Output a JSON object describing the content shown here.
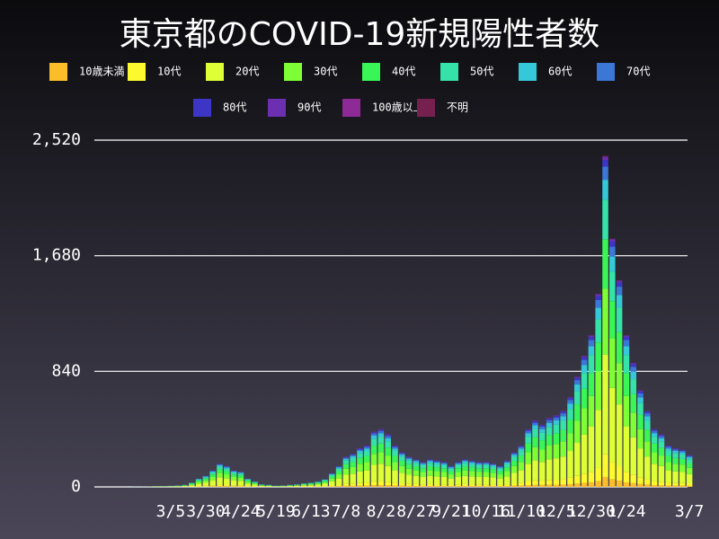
{
  "chart_data": {
    "type": "stacked-bar",
    "title": "東京都のCOVID-19新規陽性者数",
    "categories": [
      null,
      null,
      null,
      null,
      null,
      "3/5",
      null,
      null,
      null,
      null,
      "3/30",
      null,
      null,
      null,
      null,
      "4/24",
      null,
      null,
      null,
      null,
      "5/19",
      null,
      null,
      null,
      null,
      "6/13",
      null,
      null,
      null,
      null,
      "7/8",
      null,
      null,
      null,
      null,
      "8/2",
      null,
      null,
      null,
      null,
      "8/27",
      null,
      null,
      null,
      null,
      "9/21",
      null,
      null,
      null,
      null,
      "10/16",
      null,
      null,
      null,
      null,
      "11/10",
      null,
      null,
      null,
      null,
      "12/5",
      null,
      null,
      null,
      null,
      "12/30",
      null,
      null,
      null,
      null,
      "1/24",
      null,
      null,
      null,
      null,
      null,
      null,
      null,
      null,
      "3/7"
    ],
    "ylim": [
      0,
      2520
    ],
    "yticks": [
      0,
      840,
      {
        "value": 1680,
        "label": "1,680"
      },
      {
        "value": 2520,
        "label": "2,520"
      }
    ],
    "grid": true,
    "legend": "top",
    "series": [
      {
        "name": "10歳未満",
        "color": "#fbbd2a",
        "values": [
          0,
          0,
          0,
          0,
          0,
          0,
          0,
          0,
          1,
          2,
          2,
          4,
          5,
          5,
          4,
          3,
          2,
          1,
          1,
          0,
          0,
          0,
          0,
          1,
          1,
          1,
          1,
          2,
          3,
          5,
          7,
          7,
          8,
          9,
          12,
          13,
          11,
          9,
          8,
          7,
          6,
          5,
          6,
          6,
          5,
          5,
          5,
          6,
          6,
          5,
          5,
          5,
          5,
          6,
          8,
          9,
          13,
          14,
          14,
          15,
          16,
          17,
          20,
          24,
          29,
          33,
          42,
          72,
          54,
          45,
          33,
          27,
          21,
          17,
          13,
          11,
          9,
          8,
          8,
          7
        ]
      },
      {
        "name": "10代",
        "color": "#fcf92e",
        "values": [
          0,
          0,
          0,
          0,
          0,
          1,
          1,
          1,
          2,
          4,
          6,
          8,
          12,
          11,
          8,
          8,
          4,
          3,
          1,
          1,
          1,
          1,
          1,
          1,
          2,
          2,
          3,
          4,
          7,
          11,
          15,
          17,
          20,
          21,
          28,
          29,
          27,
          21,
          18,
          15,
          14,
          13,
          14,
          13,
          13,
          11,
          13,
          14,
          13,
          13,
          13,
          12,
          11,
          13,
          18,
          21,
          29,
          34,
          32,
          35,
          36,
          39,
          46,
          56,
          67,
          77,
          98,
          168,
          126,
          105,
          77,
          63,
          49,
          39,
          29,
          27,
          21,
          20,
          19,
          16
        ]
      },
      {
        "name": "20代",
        "color": "#defe35",
        "values": [
          0,
          0,
          1,
          2,
          2,
          2,
          3,
          5,
          9,
          18,
          24,
          36,
          51,
          45,
          36,
          33,
          18,
          12,
          6,
          5,
          2,
          3,
          5,
          6,
          8,
          9,
          12,
          17,
          30,
          45,
          66,
          72,
          84,
          90,
          120,
          126,
          114,
          90,
          75,
          66,
          60,
          54,
          60,
          57,
          54,
          45,
          54,
          60,
          57,
          54,
          54,
          51,
          45,
          57,
          75,
          90,
          126,
          144,
          135,
          150,
          156,
          165,
          195,
          240,
          285,
          330,
          420,
          720,
          540,
          450,
          330,
          270,
          210,
          165,
          126,
          114,
          90,
          84,
          81,
          69
        ]
      },
      {
        "name": "30代",
        "color": "#7efe35",
        "values": [
          0,
          0,
          0,
          1,
          1,
          2,
          2,
          3,
          6,
          12,
          16,
          24,
          34,
          30,
          24,
          22,
          12,
          8,
          4,
          3,
          2,
          2,
          3,
          4,
          5,
          6,
          8,
          11,
          20,
          30,
          44,
          48,
          56,
          60,
          80,
          84,
          76,
          60,
          50,
          44,
          40,
          36,
          40,
          38,
          36,
          30,
          36,
          40,
          38,
          36,
          36,
          34,
          30,
          38,
          50,
          60,
          84,
          96,
          90,
          100,
          104,
          110,
          130,
          160,
          190,
          220,
          280,
          480,
          360,
          300,
          220,
          180,
          140,
          110,
          84,
          76,
          60,
          56,
          54,
          46
        ]
      },
      {
        "name": "40代",
        "color": "#39f556",
        "values": [
          0,
          0,
          0,
          1,
          1,
          1,
          2,
          2,
          5,
          9,
          12,
          18,
          26,
          23,
          18,
          17,
          9,
          6,
          3,
          2,
          1,
          2,
          2,
          3,
          4,
          5,
          6,
          8,
          15,
          23,
          33,
          36,
          42,
          45,
          60,
          63,
          57,
          45,
          38,
          33,
          30,
          27,
          30,
          29,
          27,
          23,
          27,
          30,
          29,
          27,
          27,
          26,
          23,
          29,
          38,
          45,
          63,
          72,
          68,
          75,
          78,
          83,
          98,
          120,
          143,
          165,
          210,
          360,
          270,
          225,
          165,
          135,
          105,
          83,
          63,
          57,
          45,
          42,
          41,
          35
        ]
      },
      {
        "name": "50代",
        "color": "#35e2a8",
        "values": [
          0,
          0,
          0,
          1,
          1,
          1,
          1,
          2,
          4,
          7,
          10,
          14,
          20,
          18,
          14,
          13,
          7,
          5,
          2,
          2,
          1,
          1,
          2,
          2,
          3,
          4,
          5,
          7,
          12,
          18,
          26,
          29,
          34,
          36,
          48,
          50,
          46,
          36,
          30,
          26,
          24,
          22,
          24,
          23,
          22,
          18,
          22,
          24,
          23,
          22,
          22,
          20,
          18,
          23,
          30,
          36,
          50,
          58,
          54,
          60,
          62,
          66,
          78,
          96,
          114,
          132,
          168,
          288,
          216,
          180,
          132,
          108,
          84,
          66,
          50,
          46,
          36,
          34,
          32,
          28
        ]
      },
      {
        "name": "60代",
        "color": "#35c8d8",
        "values": [
          1,
          0,
          0,
          0,
          0,
          0,
          1,
          1,
          2,
          4,
          5,
          7,
          10,
          9,
          7,
          7,
          4,
          2,
          1,
          1,
          1,
          1,
          1,
          1,
          1,
          2,
          2,
          3,
          6,
          9,
          13,
          14,
          17,
          18,
          24,
          25,
          23,
          18,
          15,
          13,
          12,
          11,
          12,
          11,
          11,
          9,
          11,
          12,
          11,
          11,
          11,
          10,
          9,
          11,
          15,
          18,
          25,
          29,
          27,
          30,
          31,
          33,
          39,
          48,
          57,
          66,
          84,
          144,
          108,
          90,
          66,
          54,
          42,
          33,
          25,
          23,
          18,
          17,
          16,
          14
        ]
      },
      {
        "name": "70代",
        "color": "#3b77d6",
        "values": [
          0,
          1,
          1,
          0,
          0,
          1,
          0,
          1,
          1,
          2,
          3,
          5,
          7,
          6,
          5,
          4,
          2,
          2,
          1,
          1,
          0,
          0,
          1,
          1,
          1,
          1,
          2,
          2,
          4,
          6,
          9,
          10,
          11,
          12,
          16,
          17,
          15,
          12,
          10,
          9,
          8,
          7,
          8,
          8,
          7,
          6,
          7,
          8,
          8,
          7,
          7,
          7,
          6,
          8,
          10,
          12,
          17,
          19,
          18,
          20,
          21,
          22,
          26,
          32,
          38,
          44,
          56,
          96,
          72,
          60,
          44,
          36,
          28,
          22,
          17,
          15,
          12,
          11,
          11,
          9
        ]
      },
      {
        "name": "80代",
        "color": "#3c35c6",
        "values": [
          0,
          0,
          0,
          0,
          0,
          0,
          0,
          0,
          0,
          1,
          2,
          2,
          3,
          3,
          3,
          2,
          1,
          1,
          1,
          0,
          0,
          0,
          0,
          1,
          0,
          0,
          1,
          1,
          2,
          3,
          4,
          5,
          6,
          6,
          8,
          8,
          8,
          6,
          5,
          4,
          4,
          4,
          4,
          4,
          4,
          3,
          4,
          4,
          4,
          4,
          4,
          3,
          3,
          4,
          5,
          6,
          8,
          10,
          9,
          10,
          10,
          11,
          13,
          16,
          19,
          22,
          28,
          48,
          36,
          30,
          22,
          18,
          14,
          11,
          8,
          8,
          6,
          6,
          5,
          5
        ]
      },
      {
        "name": "90代",
        "color": "#6b2fb0",
        "values": [
          0,
          0,
          0,
          0,
          0,
          0,
          0,
          0,
          0,
          0,
          0,
          1,
          1,
          1,
          1,
          1,
          0,
          0,
          0,
          0,
          0,
          0,
          0,
          0,
          0,
          0,
          0,
          0,
          1,
          1,
          2,
          2,
          3,
          3,
          4,
          4,
          4,
          3,
          2,
          2,
          2,
          2,
          2,
          2,
          2,
          1,
          2,
          2,
          2,
          2,
          2,
          2,
          1,
          2,
          2,
          3,
          4,
          5,
          4,
          5,
          5,
          6,
          6,
          8,
          9,
          11,
          14,
          24,
          18,
          15,
          11,
          9,
          7,
          5,
          4,
          4,
          3,
          3,
          3,
          2
        ]
      },
      {
        "name": "100歳以上",
        "color": "#8e2a96",
        "values": [
          0,
          0,
          0,
          0,
          0,
          0,
          0,
          0,
          0,
          0,
          0,
          0,
          0,
          0,
          0,
          0,
          0,
          0,
          0,
          0,
          0,
          0,
          0,
          0,
          0,
          0,
          0,
          0,
          0,
          0,
          0,
          0,
          0,
          0,
          0,
          0,
          0,
          0,
          0,
          0,
          0,
          0,
          0,
          0,
          0,
          0,
          0,
          0,
          0,
          0,
          0,
          0,
          0,
          0,
          0,
          0,
          0,
          0,
          0,
          0,
          0,
          0,
          0,
          0,
          0,
          0,
          1,
          1,
          1,
          0,
          0,
          0,
          0,
          0,
          0,
          0,
          0,
          0,
          0,
          0
        ]
      },
      {
        "name": "不明",
        "color": "#762050",
        "values": [
          0,
          0,
          0,
          0,
          0,
          0,
          0,
          0,
          0,
          0,
          0,
          0,
          0,
          0,
          0,
          0,
          0,
          0,
          0,
          0,
          0,
          0,
          0,
          0,
          0,
          0,
          0,
          0,
          0,
          0,
          0,
          0,
          0,
          0,
          0,
          0,
          0,
          0,
          0,
          0,
          0,
          0,
          0,
          0,
          0,
          0,
          0,
          0,
          0,
          0,
          0,
          0,
          0,
          0,
          0,
          0,
          0,
          0,
          0,
          0,
          0,
          0,
          0,
          0,
          1,
          2,
          3,
          5,
          3,
          2,
          1,
          0,
          0,
          0,
          0,
          0,
          0,
          0,
          0,
          0
        ]
      }
    ]
  }
}
